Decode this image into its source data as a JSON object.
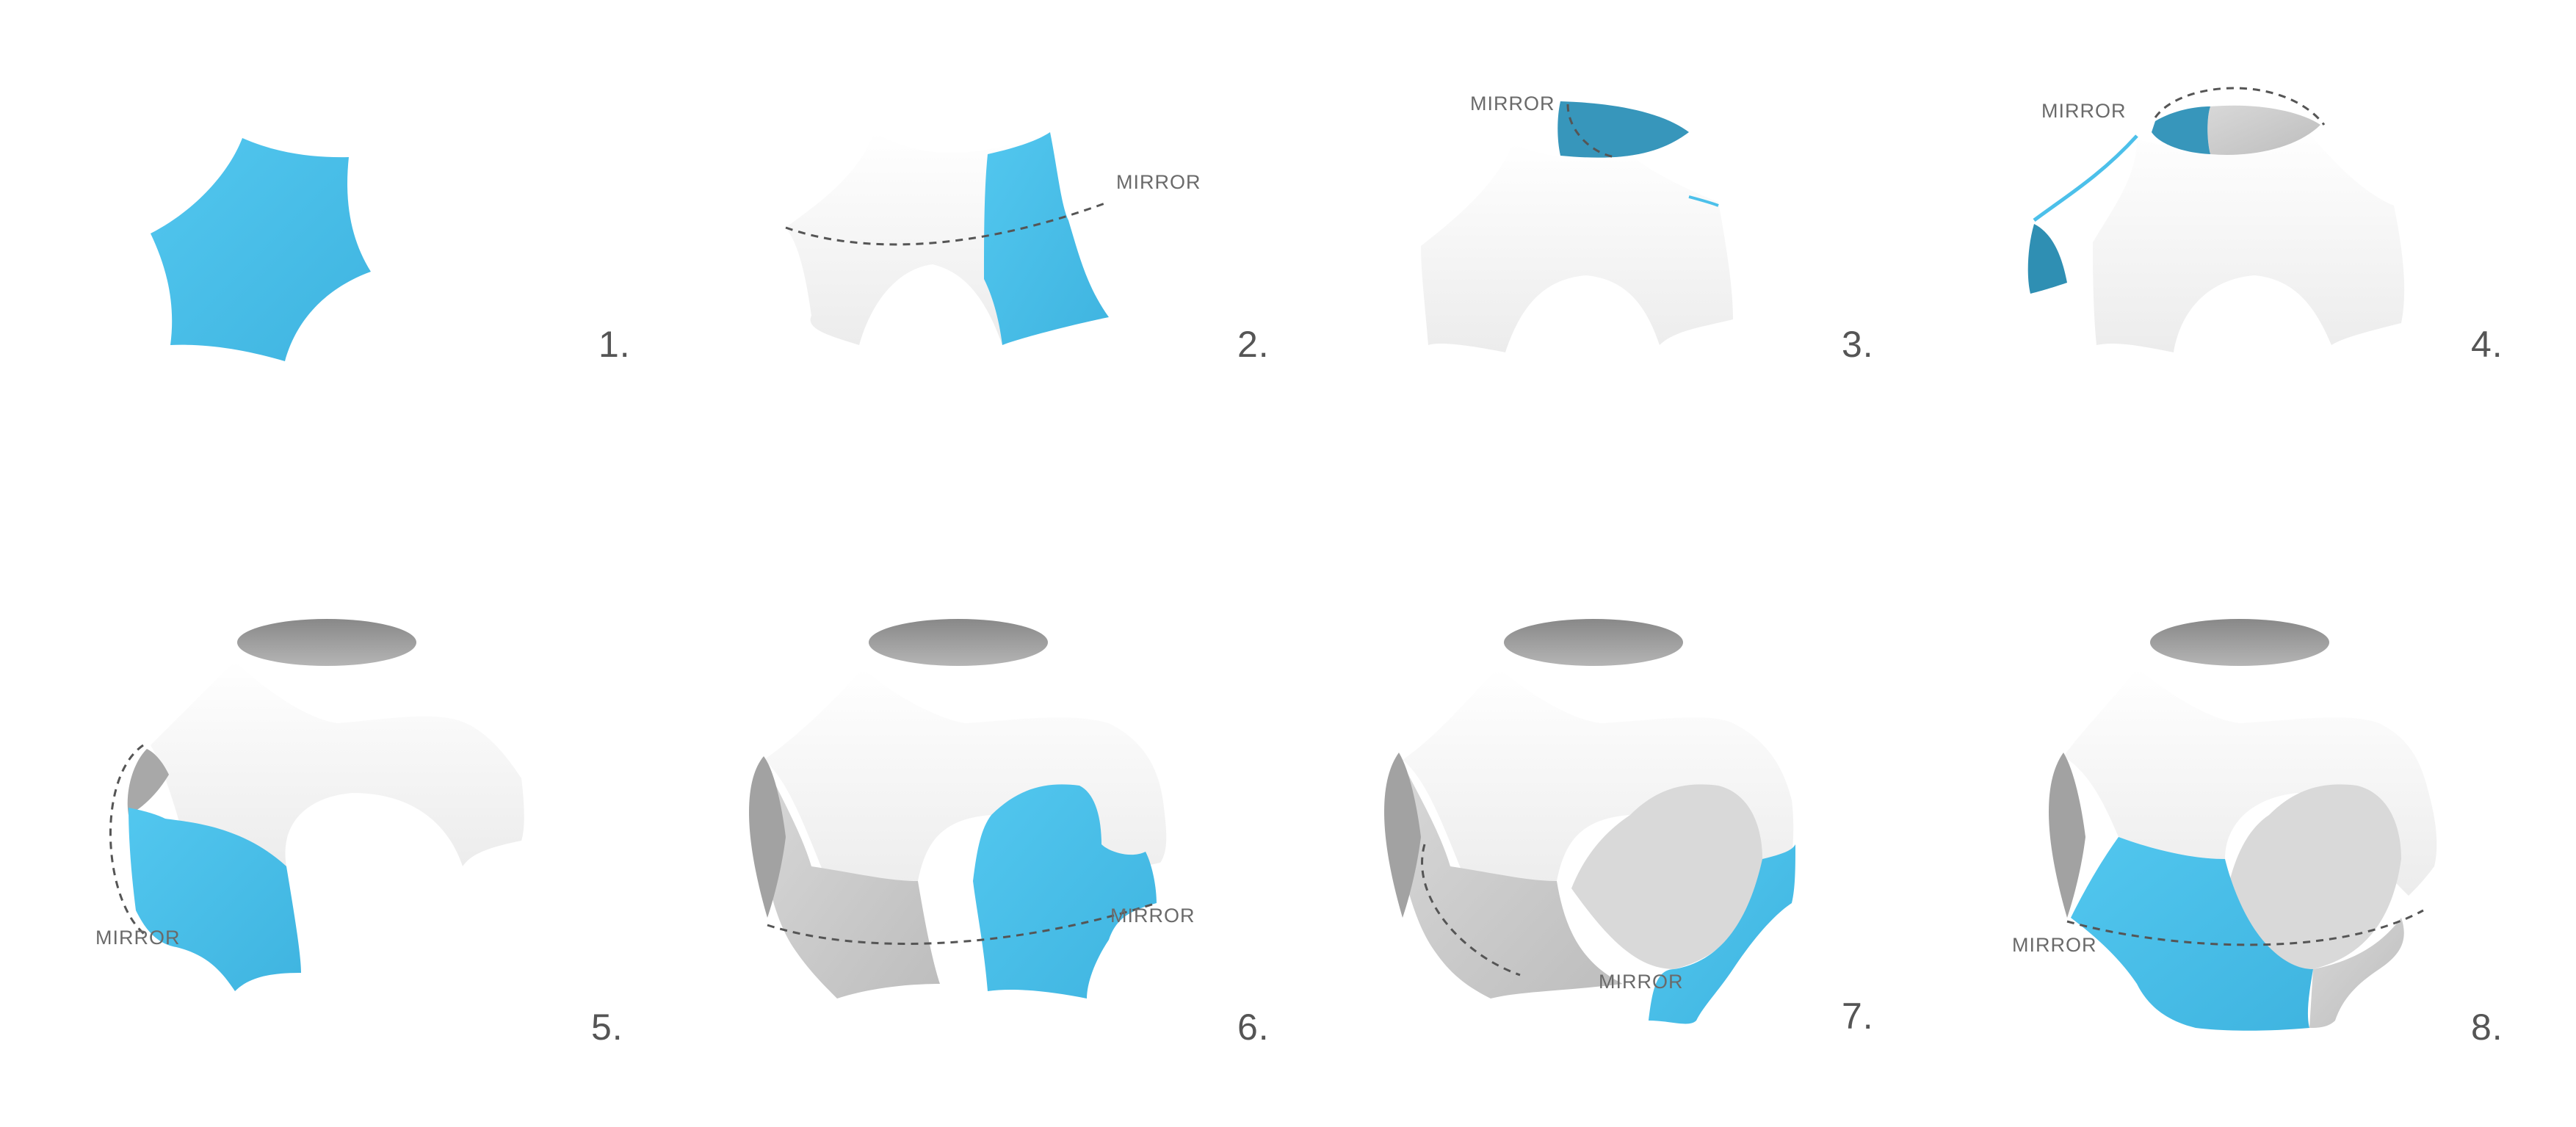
{
  "steps": [
    {
      "number": "1.",
      "label": ""
    },
    {
      "number": "2.",
      "label": "MIRROR"
    },
    {
      "number": "3.",
      "label": "MIRROR"
    },
    {
      "number": "4.",
      "label": "MIRROR"
    },
    {
      "number": "5.",
      "label": "MIRROR"
    },
    {
      "number": "6.",
      "label": "MIRROR"
    },
    {
      "number": "7.",
      "label": "MIRROR"
    },
    {
      "number": "8.",
      "label": "MIRROR"
    }
  ],
  "colors": {
    "patch": "#4cc0ea",
    "patch_dark": "#2e8fb3",
    "surface": "#f4f4f4",
    "surface_shade": "#c9c9c9",
    "hole": "#9a9a9a",
    "guide_line": "#555555"
  }
}
